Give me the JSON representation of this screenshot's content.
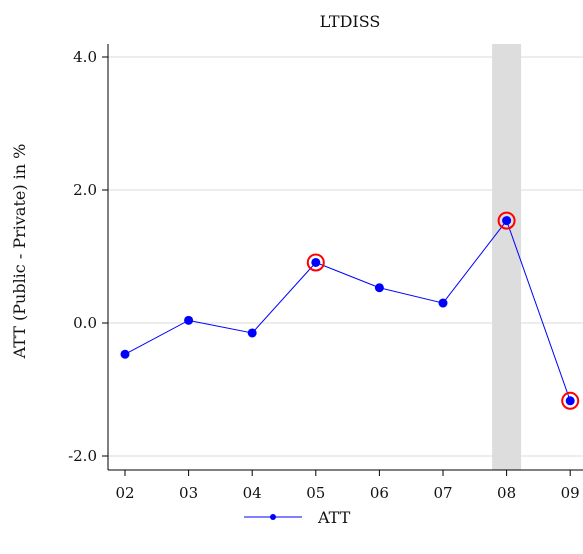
{
  "chart_data": {
    "type": "line",
    "title": "LTDISS",
    "xlabel": "",
    "ylabel": "ATT (Public - Private) in %",
    "categories": [
      "02",
      "03",
      "04",
      "05",
      "06",
      "07",
      "08",
      "09"
    ],
    "series": [
      {
        "name": "ATT",
        "values": [
          -0.47,
          0.04,
          -0.15,
          0.91,
          0.53,
          0.3,
          1.54,
          -1.17
        ],
        "color": "#0000ff"
      }
    ],
    "highlighted_points": [
      "05",
      "08",
      "09"
    ],
    "highlight_color": "#ff0000",
    "shaded_category": "08",
    "shade_color": "#dddddd",
    "ylim": [
      -2.0,
      4.0
    ],
    "yticks": [
      -2.0,
      0.0,
      2.0,
      4.0
    ],
    "ytick_labels": [
      "-2.0",
      "0.0",
      "2.0",
      "4.0"
    ],
    "grid": true,
    "legend_position": "bottom-center"
  }
}
